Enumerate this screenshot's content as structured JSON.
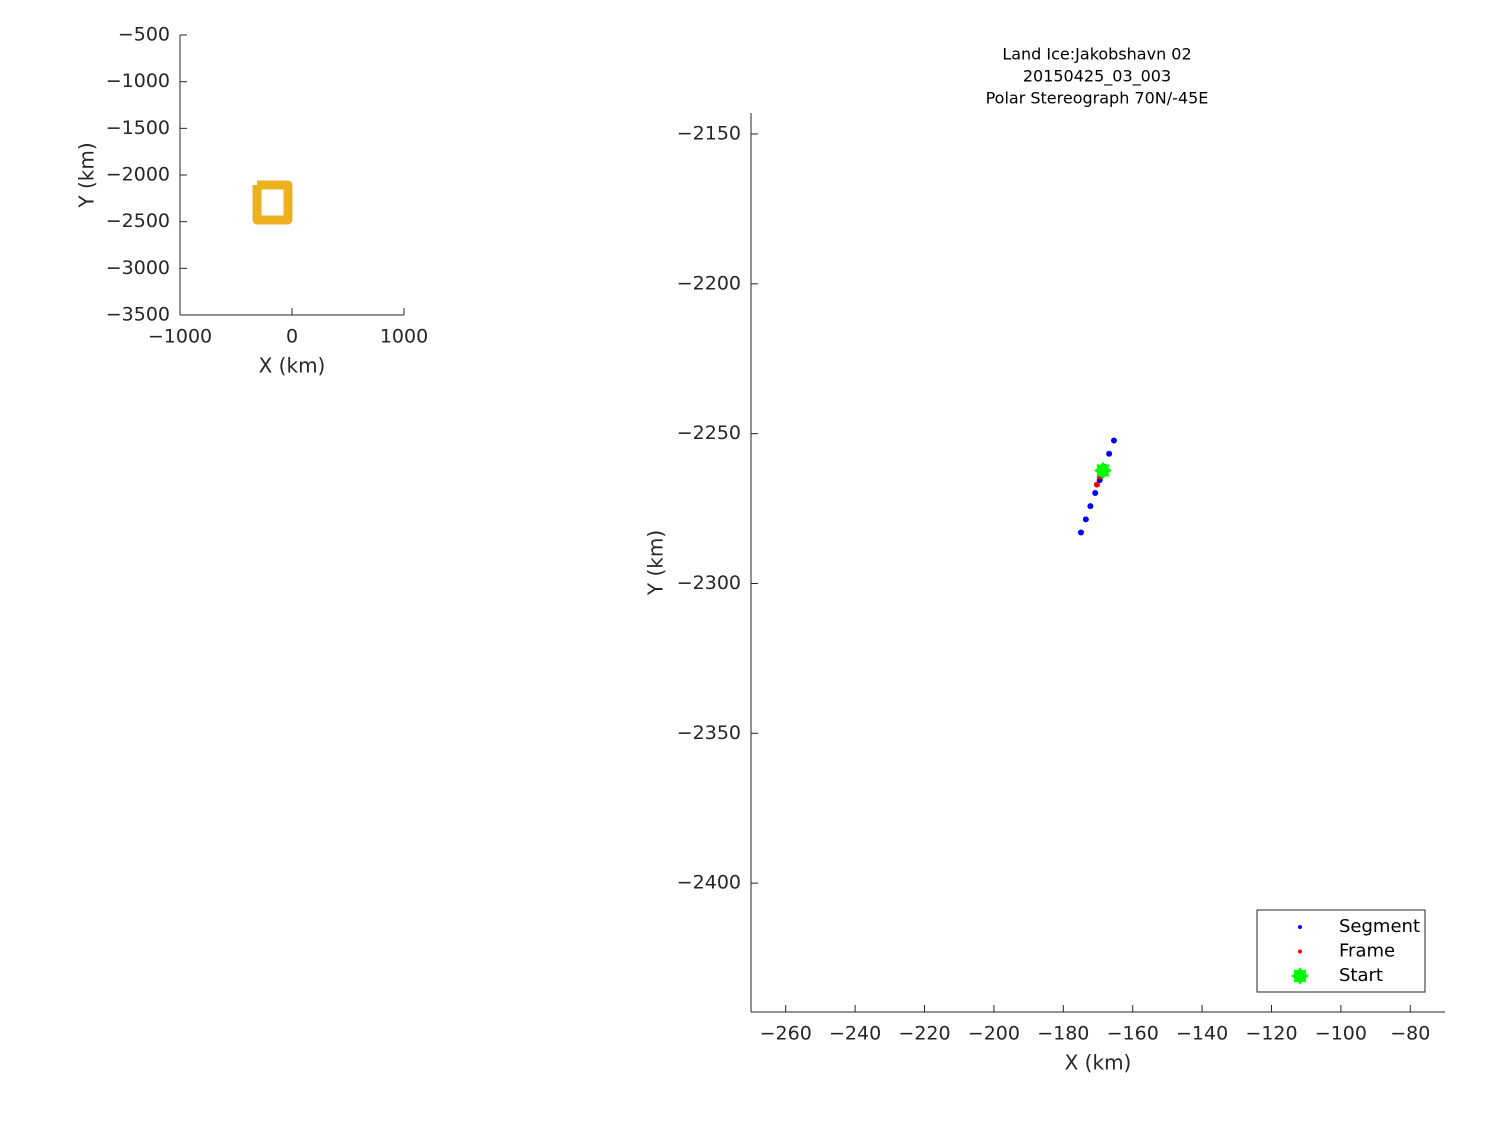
{
  "chart_data": [
    {
      "type": "line",
      "xlabel": "X (km)",
      "ylabel": "Y (km)",
      "xlim": [
        -1000,
        1000
      ],
      "ylim": [
        -3500,
        -500
      ],
      "xticks": [
        {
          "value": -1000,
          "label": "−1000"
        },
        0,
        1000
      ],
      "yticks": [
        {
          "value": -500,
          "label": "−500"
        },
        {
          "value": -1000,
          "label": "−1000"
        },
        {
          "value": -1500,
          "label": "−1500"
        },
        {
          "value": -2000,
          "label": "−2000"
        },
        {
          "value": -2500,
          "label": "−2500"
        },
        {
          "value": -3000,
          "label": "−3000"
        },
        {
          "value": -3500,
          "label": "−3500"
        }
      ],
      "series": [
        {
          "color": "#EDB120",
          "x": [
            -312,
            -36,
            -36,
            -312,
            -312
          ],
          "values": [
            -2107,
            -2107,
            -2482,
            -2482,
            -2107
          ]
        }
      ]
    },
    {
      "type": "scatter",
      "title": [
        "Land Ice:Jakobshavn 02",
        "20150425_03_003",
        "Polar Stereograph 70N/-45E"
      ],
      "xlabel": "X (km)",
      "ylabel": "Y (km)",
      "xlim": [
        -270,
        -70
      ],
      "ylim": [
        -2443,
        -2143
      ],
      "xticks": [
        {
          "value": -260,
          "label": "−260"
        },
        {
          "value": -240,
          "label": "−240"
        },
        {
          "value": -220,
          "label": "−220"
        },
        {
          "value": -200,
          "label": "−200"
        },
        {
          "value": -180,
          "label": "−180"
        },
        {
          "value": -160,
          "label": "−160"
        },
        {
          "value": -140,
          "label": "−140"
        },
        {
          "value": -120,
          "label": "−120"
        },
        {
          "value": -100,
          "label": "−100"
        },
        {
          "value": -80,
          "label": "−80"
        }
      ],
      "yticks": [
        {
          "value": -2150,
          "label": "−2150"
        },
        {
          "value": -2200,
          "label": "−2200"
        },
        {
          "value": -2250,
          "label": "−2250"
        },
        {
          "value": -2300,
          "label": "−2300"
        },
        {
          "value": -2350,
          "label": "−2350"
        },
        {
          "value": -2400,
          "label": "−2400"
        }
      ],
      "legend": "southeast",
      "series": [
        {
          "name": "Segment",
          "color": "#0000ff",
          "marker": "dot",
          "x": [
            -174.9,
            -173.5,
            -172.2,
            -170.8,
            -169.5,
            -168.1,
            -166.8,
            -165.4
          ],
          "values": [
            -2283,
            -2278.6,
            -2274.2,
            -2269.8,
            -2265.5,
            -2261.1,
            -2256.7,
            -2252.3
          ]
        },
        {
          "name": "Frame",
          "color": "#ff0000",
          "marker": "dot",
          "x": [
            -170.3,
            -169.5
          ],
          "values": [
            -2267,
            -2264.3
          ]
        },
        {
          "name": "Start",
          "color": "#00ff00",
          "marker": "star",
          "x": [
            -168.6
          ],
          "values": [
            -2262.3
          ]
        }
      ]
    }
  ]
}
